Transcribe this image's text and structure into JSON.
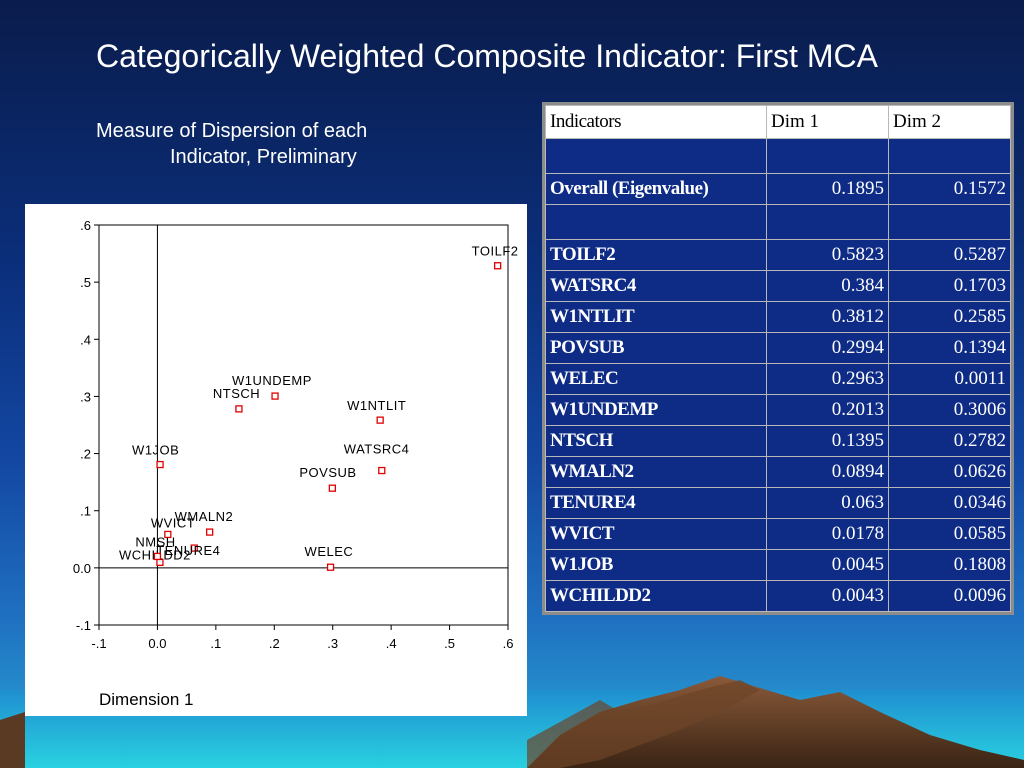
{
  "slide": {
    "title": "Categorically Weighted Composite Indicator: First MCA",
    "subtitle_line1": "Measure of Dispersion of each",
    "subtitle_line2": "Indicator, Preliminary"
  },
  "chart_data": {
    "type": "scatter",
    "xlabel": "Dimension 1",
    "ylabel": "",
    "xlim": [
      -0.1,
      0.6
    ],
    "ylim": [
      -0.1,
      0.6
    ],
    "x_ticks": [
      "-.1",
      "0.0",
      ".1",
      ".2",
      ".3",
      ".4",
      ".5",
      ".6"
    ],
    "y_ticks": [
      "-.1",
      "0.0",
      ".1",
      ".2",
      ".3",
      ".4",
      ".5",
      ".6"
    ],
    "reference_lines": {
      "x": 0,
      "y": 0
    },
    "points": [
      {
        "label": "TOILF2",
        "x": 0.5823,
        "y": 0.5287
      },
      {
        "label": "WATSRC4",
        "x": 0.384,
        "y": 0.1703
      },
      {
        "label": "W1NTLIT",
        "x": 0.3812,
        "y": 0.2585
      },
      {
        "label": "POVSUB",
        "x": 0.2994,
        "y": 0.1394
      },
      {
        "label": "WELEC",
        "x": 0.2963,
        "y": 0.0011
      },
      {
        "label": "W1UNDEMP",
        "x": 0.2013,
        "y": 0.3006
      },
      {
        "label": "NTSCH",
        "x": 0.1395,
        "y": 0.2782
      },
      {
        "label": "WMALN2",
        "x": 0.0894,
        "y": 0.0626
      },
      {
        "label": "TENURE4",
        "x": 0.063,
        "y": 0.0346
      },
      {
        "label": "WVICT",
        "x": 0.0178,
        "y": 0.0585
      },
      {
        "label": "W1JOB",
        "x": 0.0045,
        "y": 0.1808
      },
      {
        "label": "WCHILDD2",
        "x": 0.0043,
        "y": 0.0096
      },
      {
        "label": "NMSH",
        "x": 0.0,
        "y": 0.02
      }
    ],
    "marker_color": "#e00000"
  },
  "table": {
    "headers": [
      "Indicators",
      "Dim 1",
      "Dim 2"
    ],
    "overall": {
      "label": "Overall (Eigenvalue)",
      "dim1": "0.1895",
      "dim2": "0.1572"
    },
    "rows": [
      {
        "name": "TOILF2",
        "dim1": "0.5823",
        "dim2": "0.5287"
      },
      {
        "name": "WATSRC4",
        "dim1": "0.384",
        "dim2": "0.1703"
      },
      {
        "name": "W1NTLIT",
        "dim1": "0.3812",
        "dim2": "0.2585"
      },
      {
        "name": "POVSUB",
        "dim1": "0.2994",
        "dim2": "0.1394"
      },
      {
        "name": "WELEC",
        "dim1": "0.2963",
        "dim2": "0.0011"
      },
      {
        "name": "W1UNDEMP",
        "dim1": "0.2013",
        "dim2": "0.3006"
      },
      {
        "name": "NTSCH",
        "dim1": "0.1395",
        "dim2": "0.2782"
      },
      {
        "name": "WMALN2",
        "dim1": "0.0894",
        "dim2": "0.0626"
      },
      {
        "name": "TENURE4",
        "dim1": "0.063",
        "dim2": "0.0346"
      },
      {
        "name": "WVICT",
        "dim1": "0.0178",
        "dim2": "0.0585"
      },
      {
        "name": "W1JOB",
        "dim1": "0.0045",
        "dim2": "0.1808"
      },
      {
        "name": "WCHILDD2",
        "dim1": "0.0043",
        "dim2": "0.0096"
      }
    ]
  },
  "colors": {
    "table_bg": "#0e2c86",
    "header_bg": "#ffffff",
    "title_text": "#ffffff"
  }
}
